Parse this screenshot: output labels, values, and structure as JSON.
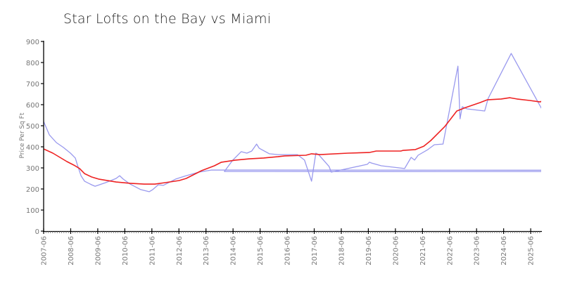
{
  "chart_data": {
    "type": "line",
    "title": "Star Lofts on the Bay vs Miami",
    "xlabel": "",
    "ylabel": "Price Per Sq Ft",
    "ylim": [
      0,
      900
    ],
    "yticks": [
      0,
      100,
      200,
      300,
      400,
      500,
      600,
      700,
      800,
      900
    ],
    "xticks": [
      "2007-06",
      "2008-06",
      "2009-06",
      "2010-06",
      "2011-06",
      "2012-06",
      "2013-06",
      "2014-06",
      "2015-06",
      "2016-06",
      "2017-06",
      "2018-06",
      "2019-06",
      "2020-06",
      "2021-06",
      "2022-06",
      "2023-06",
      "2024-06",
      "2025-06"
    ],
    "xrange": [
      2007.5,
      2025.95
    ],
    "grid": false,
    "legend": "none",
    "series": [
      {
        "name": "Star Lofts on the Bay",
        "color": "#9999ee",
        "points": [
          [
            2007.5,
            520
          ],
          [
            2007.71,
            457
          ],
          [
            2007.97,
            420
          ],
          [
            2008.23,
            397
          ],
          [
            2008.49,
            370
          ],
          [
            2008.67,
            347
          ],
          [
            2008.75,
            313
          ],
          [
            2008.88,
            263
          ],
          [
            2009.01,
            237
          ],
          [
            2009.27,
            220
          ],
          [
            2009.4,
            213
          ],
          [
            2009.79,
            230
          ],
          [
            2010.18,
            250
          ],
          [
            2010.31,
            263
          ],
          [
            2010.44,
            247
          ],
          [
            2010.7,
            223
          ],
          [
            2011.09,
            197
          ],
          [
            2011.4,
            187
          ],
          [
            2011.53,
            197
          ],
          [
            2011.74,
            220
          ],
          [
            2011.92,
            217
          ],
          [
            2012.38,
            247
          ],
          [
            2012.77,
            263
          ],
          [
            2013.24,
            280
          ],
          [
            2013.71,
            290
          ],
          [
            213.97,
            273
          ],
          [
            2014.18,
            283
          ],
          [
            2014.49,
            337
          ],
          [
            2014.8,
            377
          ],
          [
            2015.01,
            370
          ],
          [
            2015.19,
            380
          ],
          [
            2015.37,
            413
          ],
          [
            2015.47,
            393
          ],
          [
            2015.84,
            367
          ],
          [
            2016.18,
            363
          ],
          [
            2016.88,
            363
          ],
          [
            2017.14,
            337
          ],
          [
            2017.4,
            237
          ],
          [
            2017.56,
            370
          ],
          [
            2017.66,
            363
          ],
          [
            2018.05,
            307
          ],
          [
            2018.13,
            280
          ],
          [
            2019.46,
            317
          ],
          [
            2019.54,
            327
          ],
          [
            2019.62,
            323
          ],
          [
            2019.98,
            310
          ],
          [
            2020.84,
            297
          ],
          [
            2021.08,
            350
          ],
          [
            2021.21,
            337
          ],
          [
            2021.34,
            360
          ],
          [
            2021.7,
            387
          ],
          [
            2021.94,
            410
          ],
          [
            2022.24,
            413
          ],
          [
            2022.26,
            413
          ],
          [
            2022.81,
            783
          ],
          [
            2022.89,
            533
          ],
          [
            2022.97,
            590
          ],
          [
            2023.15,
            580
          ],
          [
            2023.8,
            570
          ],
          [
            2023.93,
            630
          ],
          [
            2024.78,
            843
          ],
          [
            2026.35,
            477
          ]
        ]
      },
      {
        "name": "Miami",
        "color": "#ee2222",
        "points": [
          [
            2007.5,
            390
          ],
          [
            2007.84,
            370
          ],
          [
            2008.1,
            350
          ],
          [
            2008.36,
            330
          ],
          [
            2008.62,
            313
          ],
          [
            2008.83,
            297
          ],
          [
            2009.01,
            273
          ],
          [
            2009.27,
            257
          ],
          [
            2009.53,
            247
          ],
          [
            2010.18,
            233
          ],
          [
            2010.7,
            227
          ],
          [
            2011.22,
            223
          ],
          [
            2011.61,
            223
          ],
          [
            2011.99,
            230
          ],
          [
            2012.51,
            240
          ],
          [
            2012.77,
            250
          ],
          [
            2013.34,
            287
          ],
          [
            2013.81,
            310
          ],
          [
            2014.07,
            327
          ],
          [
            2014.59,
            337
          ],
          [
            2015.11,
            343
          ],
          [
            2015.63,
            347
          ],
          [
            2016.15,
            353
          ],
          [
            2016.41,
            357
          ],
          [
            2017.19,
            360
          ],
          [
            2017.4,
            367
          ],
          [
            2017.71,
            363
          ],
          [
            2018.75,
            370
          ],
          [
            2019.53,
            373
          ],
          [
            2019.79,
            380
          ],
          [
            2020.23,
            380
          ],
          [
            2020.7,
            380
          ],
          [
            2020.78,
            383
          ],
          [
            2021.24,
            387
          ],
          [
            2021.55,
            403
          ],
          [
            2021.81,
            430
          ],
          [
            2022.33,
            497
          ],
          [
            2022.77,
            570
          ],
          [
            2023.11,
            587
          ],
          [
            2023.63,
            610
          ],
          [
            2023.89,
            623
          ],
          [
            2024.41,
            627
          ],
          [
            2024.73,
            633
          ],
          [
            2024.99,
            627
          ],
          [
            2025.46,
            620
          ],
          [
            2025.85,
            613
          ],
          [
            2025.98,
            623
          ],
          [
            2026.18,
            623
          ]
        ]
      }
    ]
  }
}
